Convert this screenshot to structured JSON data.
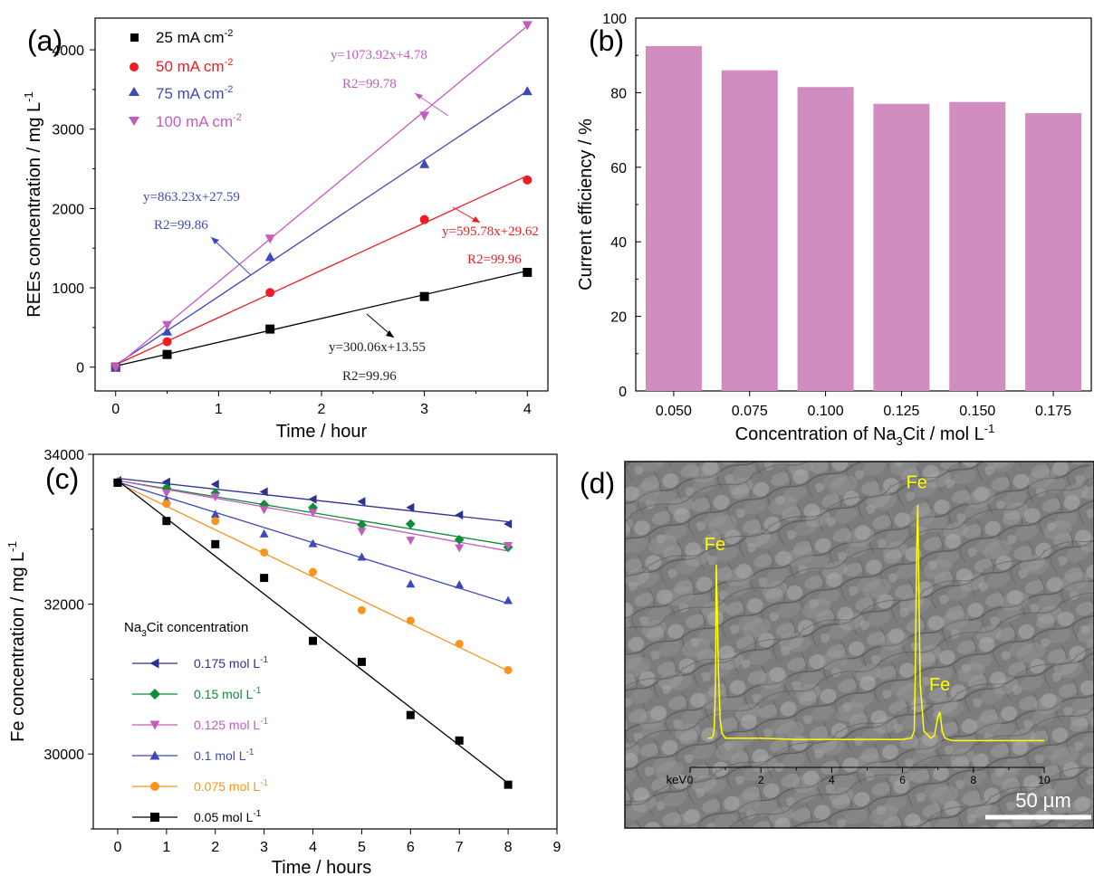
{
  "chart_data": [
    {
      "panel": "(a)",
      "type": "scatter",
      "xlabel": "Time / hour",
      "ylabel": "REEs concentration / mg L",
      "ylabel_sup": "-1",
      "xlim": [
        -0.2,
        4.2
      ],
      "ylim": [
        -300,
        4400
      ],
      "xticks": [
        0,
        1,
        2,
        3,
        4
      ],
      "yticks": [
        0,
        1000,
        2000,
        3000,
        4000
      ],
      "legend_position": "top-left",
      "series": [
        {
          "name": "25 mA cm",
          "name_sup": "-2",
          "color": "#000000",
          "marker": "square",
          "x": [
            0,
            0.5,
            1.5,
            3,
            4
          ],
          "y": [
            0,
            160,
            480,
            890,
            1195
          ],
          "fit": {
            "slope": 300.06,
            "intercept": 13.55
          },
          "equation": "y=300.06x+13.55",
          "r2": "R2=99.96"
        },
        {
          "name": "50 mA cm",
          "name_sup": "-2",
          "color": "#ee1c25",
          "marker": "circle",
          "x": [
            0,
            0.5,
            1.5,
            3,
            4
          ],
          "y": [
            0,
            320,
            940,
            1860,
            2360
          ],
          "fit": {
            "slope": 595.78,
            "intercept": 29.62
          },
          "equation": "y=595.78x+29.62",
          "r2": "R2=99.96"
        },
        {
          "name": "75 mA cm",
          "name_sup": "-2",
          "color": "#3f48b8",
          "marker": "triangle-up",
          "x": [
            0,
            0.5,
            1.5,
            3,
            4
          ],
          "y": [
            0,
            450,
            1390,
            2560,
            3480
          ],
          "fit": {
            "slope": 863.23,
            "intercept": 27.59
          },
          "equation": "y=863.23x+27.59",
          "r2": "R2=99.86"
        },
        {
          "name": "100 mA cm",
          "name_sup": "-2",
          "color": "#c35bc0",
          "marker": "triangle-down",
          "x": [
            0,
            0.5,
            1.5,
            3,
            4
          ],
          "y": [
            0,
            530,
            1620,
            3170,
            4310
          ],
          "fit": {
            "slope": 1073.92,
            "intercept": 4.78
          },
          "equation": "y=1073.92x+4.78",
          "r2": "R2=99.78"
        }
      ]
    },
    {
      "panel": "(b)",
      "type": "bar",
      "xlabel": "Concentration of Na",
      "xlabel_sub": "3",
      "xlabel_tail": "Cit / mol L",
      "xlabel_sup": "-1",
      "ylabel": "Current efficiency / %",
      "ylim": [
        0,
        100
      ],
      "yticks": [
        0,
        20,
        40,
        60,
        80,
        100
      ],
      "bar_color": "#d18cc0",
      "categories": [
        "0.050",
        "0.075",
        "0.100",
        "0.125",
        "0.150",
        "0.175"
      ],
      "values": [
        92.5,
        86,
        81.5,
        77,
        77.5,
        74.5
      ]
    },
    {
      "panel": "(c)",
      "type": "scatter",
      "xlabel": "Time / hours",
      "ylabel": "Fe concentration / mg L",
      "ylabel_sup": "-1",
      "xlim": [
        -0.5,
        9
      ],
      "ylim": [
        29000,
        34000
      ],
      "xticks": [
        0,
        1,
        2,
        3,
        4,
        5,
        6,
        7,
        8,
        9
      ],
      "yticks": [
        30000,
        32000,
        34000
      ],
      "legend_title": "Na",
      "legend_title_sub": "3",
      "legend_title_tail": "Cit concentration",
      "legend_position": "bottom-left",
      "series": [
        {
          "name": "0.175 mol L",
          "name_sup": "-1",
          "color": "#2e3192",
          "marker": "triangle-left",
          "x": [
            0,
            1,
            2,
            3,
            4,
            5,
            6,
            7,
            8
          ],
          "y": [
            33650,
            33630,
            33600,
            33500,
            33400,
            33370,
            33290,
            33190,
            33070
          ],
          "fit": [
            [
              0,
              33680
            ],
            [
              8,
              33100
            ]
          ]
        },
        {
          "name": "0.15 mol L",
          "name_sup": "-1",
          "color": "#0d8c3a",
          "marker": "diamond",
          "x": [
            0,
            1,
            2,
            3,
            4,
            5,
            6,
            7,
            8
          ],
          "y": [
            33630,
            33550,
            33480,
            33330,
            33290,
            33060,
            33070,
            32860,
            32760
          ],
          "fit": [
            [
              0,
              33650
            ],
            [
              8,
              32790
            ]
          ]
        },
        {
          "name": "0.125 mol L",
          "name_sup": "-1",
          "color": "#c35bc0",
          "marker": "triangle-down",
          "x": [
            0,
            1,
            2,
            3,
            4,
            5,
            6,
            7,
            8
          ],
          "y": [
            33630,
            33480,
            33430,
            33260,
            33220,
            32970,
            32850,
            32750,
            32780
          ],
          "fit": [
            [
              0,
              33650
            ],
            [
              8,
              32710
            ]
          ]
        },
        {
          "name": "0.1 mol L",
          "name_sup": "-1",
          "color": "#3f48b8",
          "marker": "triangle-up",
          "x": [
            0,
            1,
            2,
            3,
            4,
            5,
            6,
            7,
            8
          ],
          "y": [
            33620,
            33390,
            33200,
            32940,
            32810,
            32630,
            32270,
            32260,
            32050
          ],
          "fit": [
            [
              0,
              33630
            ],
            [
              8,
              32010
            ]
          ]
        },
        {
          "name": "0.075 mol L",
          "name_sup": "-1",
          "color": "#f7941d",
          "marker": "circle",
          "x": [
            0,
            1,
            2,
            3,
            4,
            5,
            6,
            7,
            8
          ],
          "y": [
            33620,
            33340,
            33110,
            32690,
            32430,
            31920,
            31780,
            31470,
            31120
          ],
          "fit": [
            [
              0,
              33620
            ],
            [
              8,
              31110
            ]
          ]
        },
        {
          "name": "0.05 mol L",
          "name_sup": "-1",
          "color": "#000000",
          "marker": "square",
          "x": [
            0,
            1,
            2,
            3,
            4,
            5,
            6,
            7,
            8
          ],
          "y": [
            33620,
            33110,
            32800,
            32350,
            31510,
            31230,
            30520,
            30180,
            29590
          ],
          "fit": [
            [
              0,
              33650
            ],
            [
              8,
              29610
            ]
          ]
        }
      ]
    },
    {
      "panel": "(d)",
      "type": "line",
      "xlabel": "keV",
      "xlim": [
        0,
        10
      ],
      "xticks": [
        0,
        2,
        4,
        6,
        8,
        10
      ],
      "line_color": "#ffff00",
      "spectrum": {
        "x": [
          0.5,
          0.6,
          0.65,
          0.68,
          0.7,
          0.72,
          0.74,
          0.76,
          0.8,
          0.85,
          0.9,
          1.0,
          2.0,
          3.0,
          4.0,
          5.0,
          6.0,
          6.25,
          6.33,
          6.36,
          6.4,
          6.43,
          6.46,
          6.5,
          6.6,
          6.8,
          6.9,
          6.95,
          7.0,
          7.05,
          7.08,
          7.12,
          7.2,
          7.4,
          8.0,
          9.0,
          10.0
        ],
        "y": [
          0.02,
          0.02,
          0.03,
          0.06,
          0.15,
          0.3,
          0.75,
          0.62,
          0.3,
          0.1,
          0.04,
          0.02,
          0.02,
          0.015,
          0.015,
          0.015,
          0.015,
          0.02,
          0.05,
          0.3,
          0.8,
          1.0,
          0.65,
          0.25,
          0.05,
          0.02,
          0.03,
          0.07,
          0.11,
          0.13,
          0.1,
          0.05,
          0.02,
          0.01,
          0.01,
          0.01,
          0.01
        ]
      },
      "peak_labels": [
        {
          "text": "Fe",
          "x": 0.7,
          "y": 0.78
        },
        {
          "text": "Fe",
          "x": 6.4,
          "y": 1.04
        },
        {
          "text": "Fe",
          "x": 7.05,
          "y": 0.19
        }
      ],
      "scale_bar": "50 μm"
    }
  ],
  "panels": {
    "a": {
      "label": "(a)"
    },
    "b": {
      "label": "(b)"
    },
    "c": {
      "label": "(c)"
    },
    "d": {
      "label": "(d)"
    }
  }
}
